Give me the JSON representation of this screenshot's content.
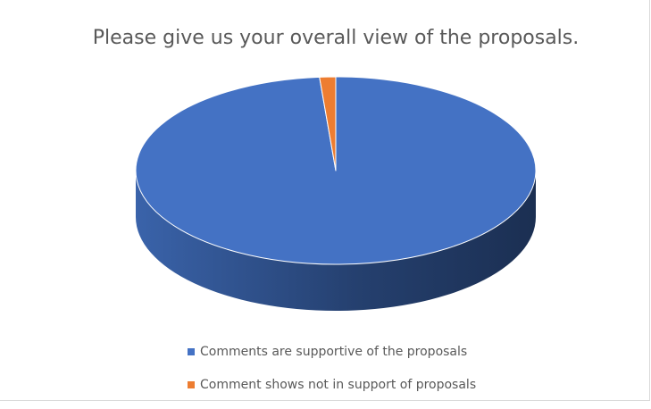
{
  "chart_data": {
    "type": "pie",
    "title": "Please give us your overall view of the proposals.",
    "categories": [
      "Comments are supportive of the proposals",
      "Comment shows not in support of proposals"
    ],
    "values": [
      98.7,
      1.3
    ],
    "colors": [
      "#4472c4",
      "#ed7d31"
    ],
    "legend_position": "bottom",
    "style": "3d"
  }
}
